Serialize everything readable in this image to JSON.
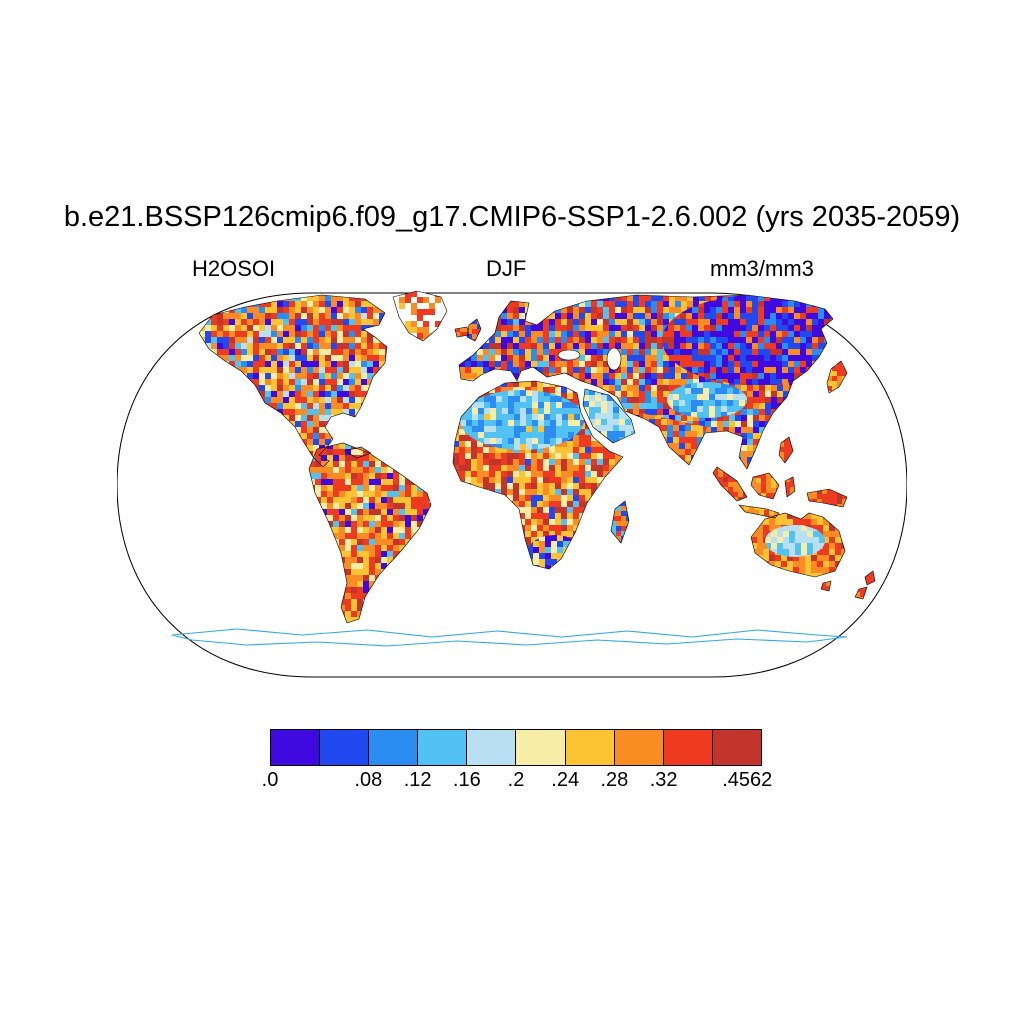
{
  "title": "b.e21.BSSP126cmip6.f09_g17.CMIP6-SSP1-2.6.002 (yrs 2035-2059)",
  "header": {
    "variable": "H2OSOI",
    "season": "DJF",
    "units": "mm3/mm3"
  },
  "chart_data": {
    "type": "heatmap",
    "title": "b.e21.BSSP126cmip6.f09_g17.CMIP6-SSP1-2.6.002 (yrs 2035-2059)",
    "variable": "H2OSOI",
    "season": "DJF",
    "units": "mm3/mm3",
    "projection": "robinson-world-map",
    "value_range": [
      0,
      0.4562
    ],
    "colorbar": {
      "orientation": "horizontal",
      "colors": [
        "#3E0ADF",
        "#2149F0",
        "#2B8CF2",
        "#52C2F2",
        "#B9DFF2",
        "#F8EDA6",
        "#FCC433",
        "#FA8C24",
        "#EE3A20",
        "#C2342C"
      ],
      "tick_labels": [
        {
          "text": ".0",
          "pos": 0.0
        },
        {
          "text": ".08",
          "pos": 0.2
        },
        {
          "text": ".12",
          "pos": 0.3
        },
        {
          "text": ".16",
          "pos": 0.4
        },
        {
          "text": ".2",
          "pos": 0.5
        },
        {
          "text": ".24",
          "pos": 0.6
        },
        {
          "text": ".28",
          "pos": 0.7
        },
        {
          "text": ".32",
          "pos": 0.8
        },
        {
          "text": ".4562",
          "pos": 0.97
        }
      ]
    },
    "map_texture": {
      "white": "#ffffff",
      "antarctica_coast": "#2FA8E8",
      "regions": [
        {
          "path": "p-na",
          "seed": 11,
          "cell": 6,
          "weights": {
            "8": 4,
            "7": 4,
            "6": 3,
            "9": 2,
            "5": 2,
            "0": 1,
            "1": 1,
            "2": 1,
            "3": 1,
            "4": 1
          }
        },
        {
          "path": "p-gl",
          "seed": 21,
          "cell": 6,
          "weights": {
            "w": 7,
            "7": 2,
            "8": 2,
            "6": 1
          }
        },
        {
          "path": "p-ic",
          "seed": 22,
          "cell": 5,
          "weights": {
            "8": 2,
            "7": 1
          }
        },
        {
          "path": "p-gb",
          "seed": 23,
          "cell": 5,
          "weights": {
            "7": 2,
            "1": 1,
            "8": 1
          }
        },
        {
          "path": "p-cb",
          "seed": 24,
          "cell": 5,
          "weights": {
            "8": 2,
            "7": 1
          }
        },
        {
          "path": "p-sa",
          "seed": 31,
          "cell": 6,
          "weights": {
            "8": 5,
            "7": 3,
            "6": 3,
            "9": 2,
            "5": 2,
            "0": 1,
            "3": 1
          }
        },
        {
          "path": "p-af",
          "seed": 41,
          "cell": 6,
          "weights": {
            "8": 4,
            "9": 3,
            "7": 3,
            "6": 3,
            "5": 2,
            "1": 1,
            "3": 1
          }
        },
        {
          "path": "p-af",
          "sub": "p-sahara",
          "seed": 42,
          "cell": 6,
          "weights": {
            "3": 5,
            "2": 3,
            "4": 2,
            "5": 1,
            "6": 0.5
          }
        },
        {
          "path": "p-af",
          "sub": "p-soaf",
          "seed": 43,
          "cell": 6,
          "weights": {
            "6": 2,
            "5": 2,
            "1": 2,
            "0": 1,
            "3": 1,
            "7": 1
          }
        },
        {
          "path": "p-mg",
          "seed": 44,
          "cell": 5,
          "weights": {
            "1": 2,
            "7": 2,
            "8": 1,
            "3": 1
          }
        },
        {
          "path": "p-ar",
          "seed": 51,
          "cell": 6,
          "weights": {
            "4": 5,
            "3": 2,
            "5": 2,
            "2": 1
          }
        },
        {
          "path": "p-eu",
          "seed": 61,
          "cell": 6,
          "weights": {
            "8": 3,
            "7": 3,
            "9": 2,
            "6": 2,
            "0": 2,
            "1": 2,
            "2": 1,
            "3": 1,
            "5": 1
          }
        },
        {
          "path": "p-eu",
          "sub": "p-siberia",
          "seed": 62,
          "cell": 6,
          "weights": {
            "0": 4,
            "1": 3,
            "8": 2,
            "2": 1,
            "9": 1,
            "7": 1
          }
        },
        {
          "path": "p-eu",
          "sub": "p-tibet",
          "seed": 63,
          "cell": 6,
          "weights": {
            "3": 4,
            "2": 2,
            "4": 2,
            "5": 1
          }
        },
        {
          "path": "p-eu",
          "sub": "p-india",
          "seed": 64,
          "cell": 6,
          "weights": {
            "7": 3,
            "8": 3,
            "6": 2,
            "2": 1,
            "1": 1
          }
        },
        {
          "path": "p-su",
          "seed": 71,
          "cell": 5,
          "weights": {
            "8": 3,
            "7": 2,
            "9": 1
          }
        },
        {
          "path": "p-jv",
          "seed": 72,
          "cell": 5,
          "weights": {
            "8": 2,
            "7": 2,
            "6": 1
          }
        },
        {
          "path": "p-bo",
          "seed": 73,
          "cell": 5,
          "weights": {
            "8": 3,
            "7": 2,
            "6": 1
          }
        },
        {
          "path": "p-sl",
          "seed": 74,
          "cell": 5,
          "weights": {
            "8": 2,
            "7": 1
          }
        },
        {
          "path": "p-ng",
          "seed": 75,
          "cell": 5,
          "weights": {
            "8": 3,
            "7": 2,
            "9": 1
          }
        },
        {
          "path": "p-ph",
          "seed": 76,
          "cell": 5,
          "weights": {
            "8": 2,
            "7": 1
          }
        },
        {
          "path": "p-jp",
          "seed": 77,
          "cell": 5,
          "weights": {
            "8": 2,
            "7": 1,
            "6": 1
          }
        },
        {
          "path": "p-au",
          "seed": 81,
          "cell": 6,
          "weights": {
            "7": 3,
            "8": 3,
            "6": 2,
            "9": 1
          }
        },
        {
          "path": "p-au",
          "sub": "p-auint",
          "seed": 82,
          "cell": 6,
          "weights": {
            "4": 4,
            "3": 2,
            "5": 2
          }
        },
        {
          "path": "p-ts",
          "seed": 83,
          "cell": 5,
          "weights": {
            "8": 2,
            "7": 1
          }
        },
        {
          "path": "p-nz1",
          "seed": 84,
          "cell": 5,
          "weights": {
            "8": 1
          }
        },
        {
          "path": "p-nz2",
          "seed": 85,
          "cell": 5,
          "weights": {
            "8": 2,
            "7": 1
          }
        }
      ]
    }
  }
}
